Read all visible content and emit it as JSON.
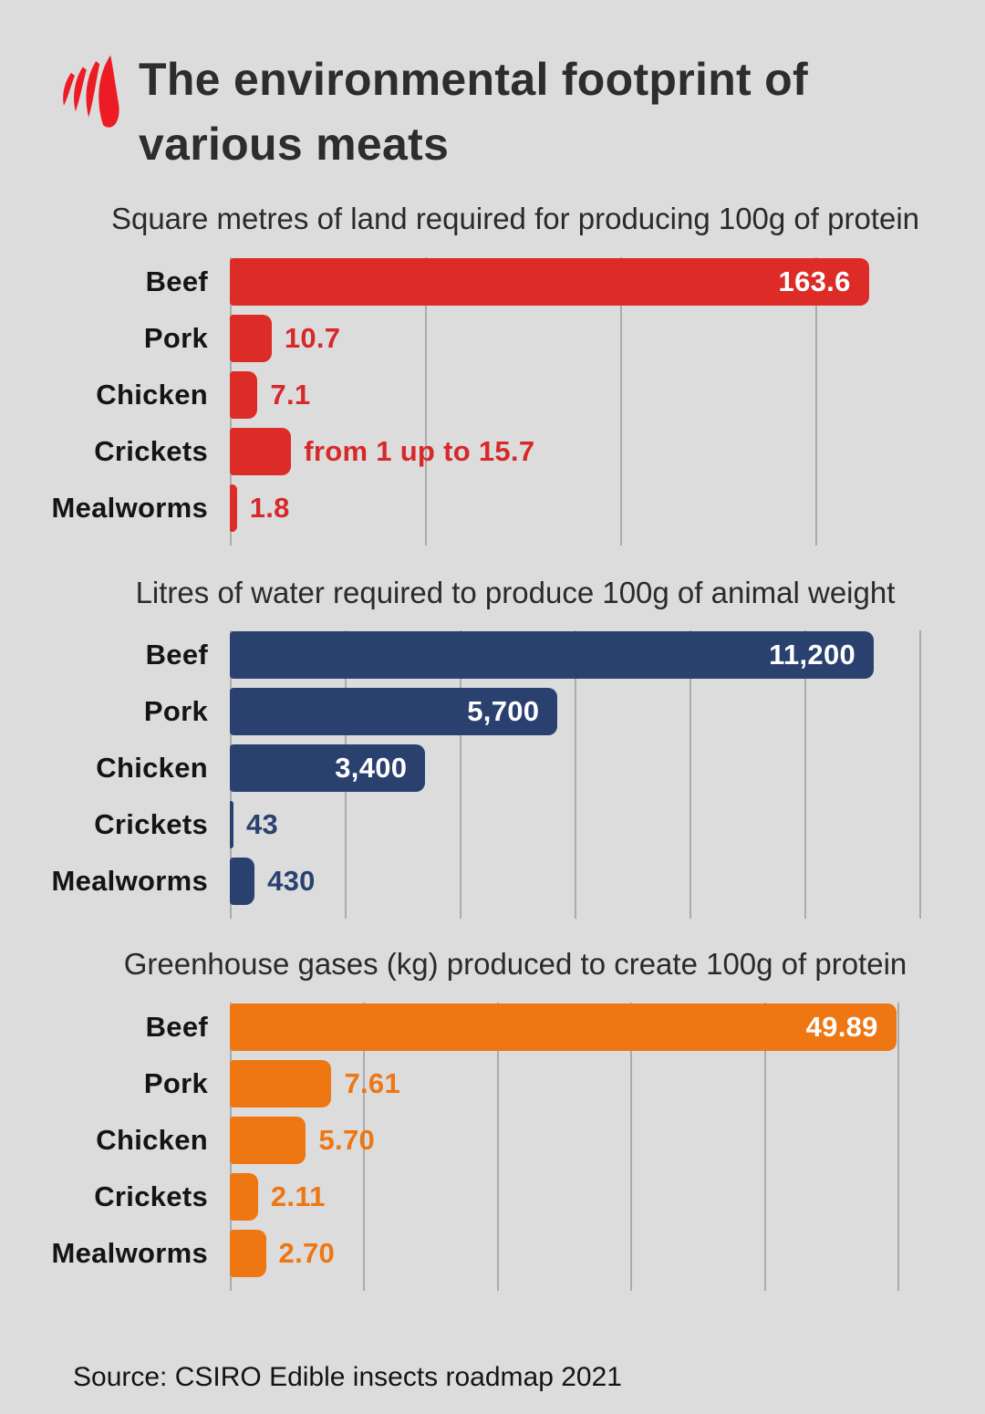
{
  "page": {
    "background": "#dcdcdc"
  },
  "header": {
    "logo": {
      "icon": "sbs-logo",
      "color": "#ed1b24"
    },
    "title_lines": [
      "The environmental footprint of",
      "various meats"
    ],
    "title_color": "#2d2d2d"
  },
  "chart_data": [
    {
      "id": "land",
      "type": "bar",
      "orientation": "horizontal",
      "title": "Square metres of land required for producing 100g of protein",
      "categories": [
        "Beef",
        "Pork",
        "Chicken",
        "Crickets",
        "Mealworms"
      ],
      "values": [
        163.6,
        10.7,
        7.1,
        15.7,
        1.8
      ],
      "value_labels": [
        "163.6",
        "10.7",
        "7.1",
        "from 1 up to 15.7",
        "1.8"
      ],
      "label_positions": [
        "inside",
        "outside",
        "outside",
        "outside",
        "outside"
      ],
      "bar_color": "#dd2b27",
      "value_text_color": "#d7282a",
      "axis_max": 184,
      "gridlines": [
        0,
        50,
        100,
        150
      ],
      "grid": true,
      "legend": false,
      "note": "Crickets bar drawn at upper bound 15.7"
    },
    {
      "id": "water",
      "type": "bar",
      "orientation": "horizontal",
      "title": "Litres of water required to produce 100g of animal weight",
      "categories": [
        "Beef",
        "Pork",
        "Chicken",
        "Crickets",
        "Mealworms"
      ],
      "values": [
        11200,
        5700,
        3400,
        43,
        430
      ],
      "value_labels": [
        "11,200",
        "5,700",
        "3,400",
        "43",
        "430"
      ],
      "label_positions": [
        "inside",
        "inside",
        "inside",
        "outside",
        "outside"
      ],
      "bar_color": "#2a4170",
      "value_text_color": "#2a4170",
      "axis_max": 12500,
      "gridlines": [
        0,
        2000,
        4000,
        6000,
        8000,
        10000,
        12000
      ],
      "grid": true,
      "legend": false
    },
    {
      "id": "ghg",
      "type": "bar",
      "orientation": "horizontal",
      "title": "Greenhouse gases (kg) produced to create 100g of protein",
      "categories": [
        "Beef",
        "Pork",
        "Chicken",
        "Crickets",
        "Mealworms"
      ],
      "values": [
        49.89,
        7.61,
        5.7,
        2.11,
        2.7
      ],
      "value_labels": [
        "49.89",
        "7.61",
        "5.70",
        "2.11",
        "2.70"
      ],
      "label_positions": [
        "inside",
        "outside",
        "outside",
        "outside",
        "outside"
      ],
      "bar_color": "#ee7613",
      "value_text_color": "#ee7613",
      "axis_max": 53.8,
      "gridlines": [
        0,
        10,
        20,
        30,
        40,
        50
      ],
      "grid": true,
      "legend": false
    }
  ],
  "footer": {
    "source": "Source: CSIRO Edible insects roadmap 2021"
  }
}
